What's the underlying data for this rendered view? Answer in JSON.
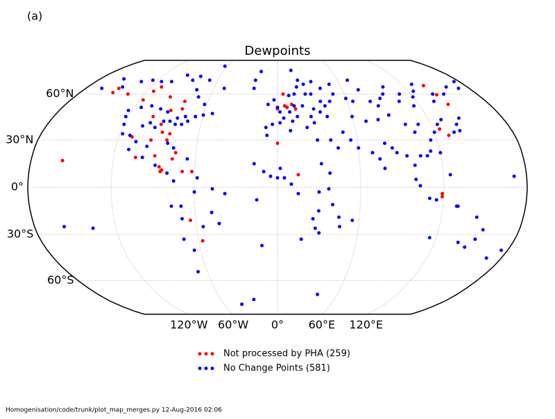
{
  "chart_data": {
    "type": "scatter",
    "projection": "robinson",
    "panel_label": "(a)",
    "title": "Dewpoints",
    "footer": "Homogenisation/code/trunk/plot_map_merges.py   12-Aug-2016 02:06",
    "xlim": [
      -180,
      180
    ],
    "ylim": [
      -90,
      90
    ],
    "xticks": [
      {
        "value": -120,
        "label": "120°W"
      },
      {
        "value": -60,
        "label": "60°W"
      },
      {
        "value": 0,
        "label": "0°"
      },
      {
        "value": 60,
        "label": "60°E"
      },
      {
        "value": 120,
        "label": "120°E"
      }
    ],
    "yticks": [
      {
        "value": 60,
        "label": "60°N"
      },
      {
        "value": 30,
        "label": "30°N"
      },
      {
        "value": 0,
        "label": "0°"
      },
      {
        "value": -30,
        "label": "30°S"
      },
      {
        "value": -60,
        "label": "60°S"
      }
    ],
    "grid": true,
    "series": [
      {
        "name": "Not processed by PHA (259)",
        "color": "#ff0000",
        "x": [
          -150,
          -149,
          -135,
          -114,
          -110,
          -117,
          -95,
          -80,
          -79,
          -88,
          -100,
          -91,
          -88,
          -82,
          -83,
          -95,
          -104,
          -90,
          -86,
          -84,
          -85,
          -75,
          -77,
          -62,
          -157,
          -64,
          -57,
          -69,
          -110,
          5,
          6,
          8,
          12,
          15,
          0,
          15,
          0,
          143,
          145,
          125,
          130,
          119,
          119,
          140
        ],
        "values": [
          61,
          64,
          60,
          62,
          65,
          56,
          58,
          55,
          50,
          49,
          45,
          40,
          35,
          34,
          30,
          30,
          19,
          20,
          13,
          11,
          10,
          22,
          18,
          10,
          17,
          -21,
          -34,
          10,
          32,
          60,
          52,
          51,
          53,
          50,
          28,
          8,
          50,
          59.5,
          53,
          37,
          33,
          -4,
          -6,
          66
        ]
      },
      {
        "name": "No Change Points (581)",
        "color": "#0000ff",
        "x": [
          -165,
          -156,
          -147,
          -135,
          -125,
          -115,
          -105,
          -95,
          -85,
          -80,
          -68,
          -63,
          -75,
          -70,
          -62,
          -53,
          -60,
          -66,
          -74,
          -80,
          -90,
          -97,
          -106,
          -114,
          -123,
          -122,
          -120,
          -118,
          -112,
          -105,
          -100,
          -95,
          -90,
          -85,
          -80,
          -75,
          -71,
          -82,
          -97,
          -106,
          -110,
          -99,
          -89,
          -80,
          -77,
          -66,
          -75,
          -58,
          -47,
          -38,
          -60,
          -70,
          -77,
          -48,
          -43,
          -55,
          -70,
          -71,
          -65,
          -68,
          -15,
          -12,
          -158,
          -137,
          -40,
          -25,
          40,
          -50,
          -22,
          -18,
          -22,
          -8,
          -3,
          0,
          2,
          -4,
          -9,
          2,
          5,
          10,
          15,
          18,
          25,
          25,
          30,
          37,
          30,
          21,
          14,
          10,
          12,
          16,
          23,
          29,
          27,
          40,
          45,
          50,
          40,
          33,
          20,
          15,
          40,
          35,
          50,
          60,
          65,
          70,
          75,
          80,
          85,
          90,
          95,
          100,
          105,
          110,
          115,
          120,
          125,
          130,
          135,
          140,
          150,
          160,
          170,
          175,
          60,
          70,
          80,
          90,
          100,
          105,
          110,
          115,
          120,
          125,
          130,
          140,
          145,
          50,
          55,
          45,
          40,
          60,
          70,
          75,
          78,
          80,
          85,
          88,
          95,
          100,
          105,
          110,
          113,
          120,
          135,
          140,
          125,
          100,
          103,
          110,
          115,
          130,
          -17,
          -10,
          -5,
          0,
          5,
          2,
          -8,
          10,
          30,
          32,
          38,
          37,
          30,
          28,
          18,
          26,
          45,
          55,
          40,
          15,
          10,
          30,
          46,
          31,
          115,
          138,
          145,
          150,
          153,
          146,
          131,
          175,
          168,
          171
        ],
        "values": [
          64,
          71,
          65,
          69,
          70,
          69,
          69,
          74,
          70,
          73,
          70,
          82,
          63,
          58,
          53,
          47,
          46,
          45,
          45,
          44,
          48,
          50,
          52,
          51,
          49,
          45,
          40,
          34,
          33,
          39,
          41,
          38,
          42,
          42,
          40,
          40,
          42,
          28,
          26,
          29,
          24,
          19,
          14,
          9,
          25,
          18,
          4,
          6,
          -1,
          -4,
          -3,
          -12,
          -12,
          -16,
          -23,
          -25,
          -20,
          -33,
          -40,
          -54,
          -8,
          -37,
          -25,
          -26,
          -78,
          -74,
          -70,
          64,
          70,
          77,
          64,
          53,
          56,
          51,
          48,
          40,
          38,
          41,
          44,
          59,
          60,
          65,
          60,
          67,
          60,
          55,
          50,
          52,
          52,
          48,
          42,
          45,
          38,
          41,
          45,
          45,
          55,
          60,
          64,
          69,
          70,
          78,
          52,
          48,
          67,
          57,
          55,
          70,
          63,
          55,
          52,
          57,
          60,
          65,
          55,
          60,
          52,
          58,
          62,
          67,
          55,
          60,
          60,
          65,
          64,
          69,
          45,
          42,
          43,
          46,
          40,
          35,
          40,
          30,
          35,
          40,
          43,
          40,
          44,
          35,
          30,
          25,
          30,
          25,
          22,
          18,
          12,
          28,
          25,
          22,
          20,
          14,
          20,
          20,
          23,
          22,
          35,
          36,
          8,
          5,
          1,
          -7,
          -8,
          -12,
          15,
          10,
          7,
          6,
          6,
          12,
          33,
          36,
          30,
          15,
          9,
          -1,
          -15,
          -26,
          -33,
          -20,
          -19,
          -21,
          -11,
          -4,
          2,
          -3,
          -25,
          -29,
          -32,
          -35,
          -38,
          -33,
          -27,
          -19,
          -12,
          -40,
          -45,
          7
        ]
      }
    ]
  }
}
